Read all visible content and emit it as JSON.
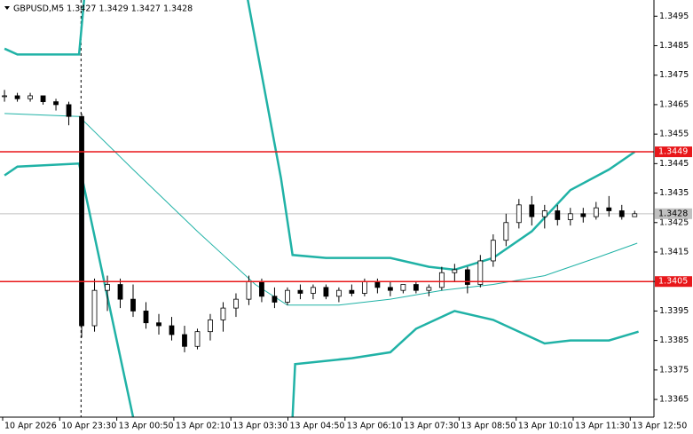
{
  "chart_data": {
    "type": "candlestick",
    "title": "GBPUSD,M5  1.3427 1.3429 1.3427 1.3428",
    "x_axis_labels": [
      "10 Apr 2026",
      "10 Apr 23:30",
      "13 Apr 00:50",
      "13 Apr 02:10",
      "13 Apr 03:30",
      "13 Apr 04:50",
      "13 Apr 06:10",
      "13 Apr 07:30",
      "13 Apr 08:50",
      "13 Apr 10:10",
      "13 Apr 11:30",
      "13 Apr 12:50"
    ],
    "xlim": [
      -0.35,
      50.5
    ],
    "ylim": [
      1.3359,
      1.35005
    ],
    "yticks": [
      1.3365,
      1.3375,
      1.3385,
      1.3395,
      1.3405,
      1.3415,
      1.3425,
      1.3435,
      1.3445,
      1.3455,
      1.3465,
      1.3475,
      1.3485,
      1.3495
    ],
    "up_color": "#ffffff",
    "down_color": "#000000",
    "open": [
      1.3468,
      1.3468,
      1.3467,
      1.3468,
      1.3466,
      1.3465,
      1.3461,
      1.339,
      1.3402,
      1.3404,
      1.3399,
      1.3395,
      1.3391,
      1.339,
      1.3387,
      1.3383,
      1.3388,
      1.3392,
      1.3396,
      1.3399,
      1.3405,
      1.34,
      1.3398,
      1.3402,
      1.3401,
      1.3403,
      1.34,
      1.3402,
      1.3401,
      1.3405,
      1.3403,
      1.3402,
      1.3404,
      1.3402,
      1.3403,
      1.3408,
      1.3409,
      1.3404,
      1.3412,
      1.3419,
      1.3425,
      1.3431,
      1.3427,
      1.3429,
      1.3426,
      1.3428,
      1.3427,
      1.343,
      1.3429,
      1.3427
    ],
    "high": [
      1.347,
      1.3469,
      1.3469,
      1.3468,
      1.3467,
      1.3466,
      1.3462,
      1.3406,
      1.3407,
      1.3406,
      1.3404,
      1.3398,
      1.3394,
      1.3393,
      1.339,
      1.3389,
      1.3394,
      1.3398,
      1.3401,
      1.3407,
      1.3406,
      1.3403,
      1.3403,
      1.3404,
      1.3404,
      1.3404,
      1.3403,
      1.3404,
      1.3406,
      1.3406,
      1.3405,
      1.3404,
      1.3405,
      1.3404,
      1.341,
      1.3411,
      1.341,
      1.3414,
      1.3421,
      1.3428,
      1.3433,
      1.3434,
      1.3431,
      1.3431,
      1.343,
      1.343,
      1.3432,
      1.3434,
      1.3431,
      1.3429
    ],
    "low": [
      1.3466,
      1.3466,
      1.3466,
      1.3465,
      1.3463,
      1.3458,
      1.3386,
      1.3388,
      1.3395,
      1.3396,
      1.3393,
      1.3389,
      1.3387,
      1.3385,
      1.3381,
      1.3382,
      1.3385,
      1.3388,
      1.3393,
      1.3397,
      1.3398,
      1.3396,
      1.3397,
      1.3399,
      1.3399,
      1.3399,
      1.3398,
      1.34,
      1.34,
      1.3401,
      1.34,
      1.3401,
      1.3401,
      1.34,
      1.3402,
      1.3405,
      1.3401,
      1.3403,
      1.341,
      1.3417,
      1.3423,
      1.3424,
      1.3423,
      1.3424,
      1.3424,
      1.3425,
      1.3426,
      1.3427,
      1.3426,
      1.3427
    ],
    "close": [
      1.3468,
      1.3467,
      1.3468,
      1.3466,
      1.3465,
      1.3461,
      1.339,
      1.3402,
      1.3404,
      1.3399,
      1.3395,
      1.3391,
      1.339,
      1.3387,
      1.3383,
      1.3388,
      1.3392,
      1.3396,
      1.3399,
      1.3405,
      1.34,
      1.3398,
      1.3402,
      1.3401,
      1.3403,
      1.34,
      1.3402,
      1.3401,
      1.3405,
      1.3403,
      1.3402,
      1.3404,
      1.3402,
      1.3403,
      1.3408,
      1.3409,
      1.3404,
      1.3412,
      1.3419,
      1.3425,
      1.3431,
      1.3427,
      1.3429,
      1.3426,
      1.3428,
      1.3427,
      1.343,
      1.3429,
      1.3427,
      1.3428
    ],
    "series": [
      {
        "color": "#20b2a6",
        "width": 2.5,
        "x": [
          0,
          1,
          5.8,
          6.2,
          12,
          18.9,
          21.5,
          22.4,
          25,
          30,
          33,
          35,
          38,
          41,
          44,
          47,
          49
        ],
        "values": [
          1.3484,
          1.3482,
          1.3482,
          1.3501,
          null,
          1.3501,
          1.344,
          1.3414,
          1.3413,
          1.3413,
          1.341,
          1.3409,
          1.3413,
          1.3422,
          1.3436,
          1.3443,
          1.3449
        ]
      },
      {
        "color": "#20b2a6",
        "width": 1,
        "x": [
          0,
          5.8,
          10,
          15,
          19.5,
          22,
          26,
          30,
          34,
          38,
          42,
          46,
          49.2
        ],
        "values": [
          1.3462,
          1.3461,
          1.3443,
          1.3422,
          1.3404,
          1.3397,
          1.3397,
          1.3399,
          1.3402,
          1.3404,
          1.3407,
          1.3413,
          1.3418
        ]
      },
      {
        "color": "#20b2a6",
        "width": 2.5,
        "x": [
          0,
          1,
          5.8,
          10,
          16,
          22.4,
          22.6,
          27,
          30,
          32,
          35,
          38,
          42,
          44,
          47,
          49.3
        ],
        "values": [
          1.3441,
          1.3444,
          1.3445,
          1.3359,
          null,
          1.3359,
          1.3377,
          1.3379,
          1.3381,
          1.3389,
          1.3395,
          1.3392,
          1.3384,
          1.3385,
          1.3385,
          1.3388
        ]
      }
    ],
    "hlines": [
      {
        "value": 1.3449,
        "color": "#e8171a"
      },
      {
        "value": 1.3405,
        "color": "#e8171a"
      }
    ],
    "last_price": 1.3428
  }
}
